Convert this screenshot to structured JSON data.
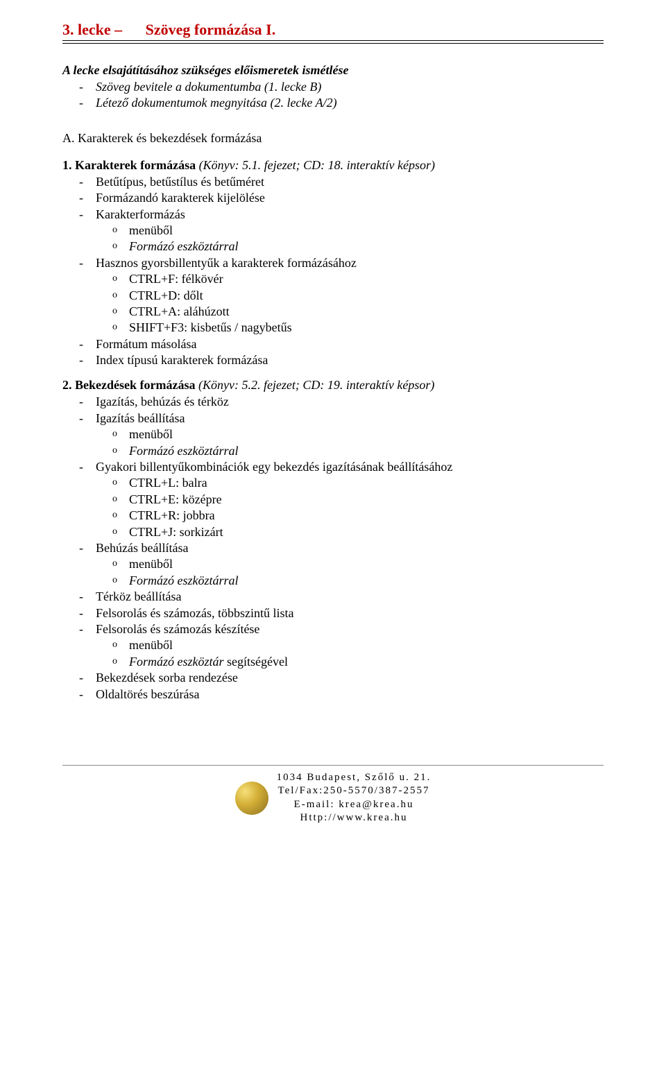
{
  "title": {
    "left": "3. lecke –",
    "right": "Szöveg formázása I."
  },
  "intro": {
    "heading": "A lecke elsajátításához szükséges előismeretek ismétlése",
    "items": [
      "Szöveg bevitele a dokumentumba (1. lecke B)",
      "Létező dokumentumok megnyitása (2. lecke A/2)"
    ]
  },
  "sectionA": "A. Karakterek és bekezdések formázása",
  "sec1": {
    "heading": "1. Karakterek formázása ",
    "ref": "(Könyv: 5.1. fejezet; CD: 18. interaktív képsor)",
    "i1": "Betűtípus, betűstílus és betűméret",
    "i2": "Formázandó karakterek kijelölése",
    "i3": "Karakterformázás",
    "i3a": "menüből",
    "i3b": "Formázó eszköztárral",
    "i4": "Hasznos gyorsbillentyűk a karakterek formázásához",
    "i4a": "CTRL+F: félkövér",
    "i4b": "CTRL+D: dőlt",
    "i4c": "CTRL+A: aláhúzott",
    "i4d": "SHIFT+F3: kisbetűs / nagybetűs",
    "i5": "Formátum másolása",
    "i6": "Index típusú karakterek formázása"
  },
  "sec2": {
    "heading": "2. Bekezdések formázása ",
    "ref": "(Könyv: 5.2. fejezet; CD: 19. interaktív képsor)",
    "i1": "Igazítás, behúzás és térköz",
    "i2": "Igazítás beállítása",
    "i2a": "menüből",
    "i2b": "Formázó eszköztárral",
    "i3": "Gyakori billentyűkombinációk egy bekezdés igazításának beállításához",
    "i3a": "CTRL+L: balra",
    "i3b": "CTRL+E: középre",
    "i3c": "CTRL+R: jobbra",
    "i3d": "CTRL+J: sorkizárt",
    "i4": "Behúzás beállítása",
    "i4a": "menüből",
    "i4b": "Formázó eszköztárral",
    "i5": "Térköz beállítása",
    "i6": "Felsorolás és számozás, többszintű lista",
    "i7": "Felsorolás és számozás készítése",
    "i7a": "menüből",
    "i7b_pre": "Formázó eszköztár",
    "i7b_suf": " segítségével",
    "i8": "Bekezdések sorba rendezése",
    "i9": "Oldaltörés beszúrása"
  },
  "footer": {
    "l1": "1034 Budapest, Szőlő u. 21.",
    "l2": "Tel/Fax:250-5570/387-2557",
    "l3": "E-mail: krea@krea.hu",
    "l4": "Http://www.krea.hu"
  }
}
